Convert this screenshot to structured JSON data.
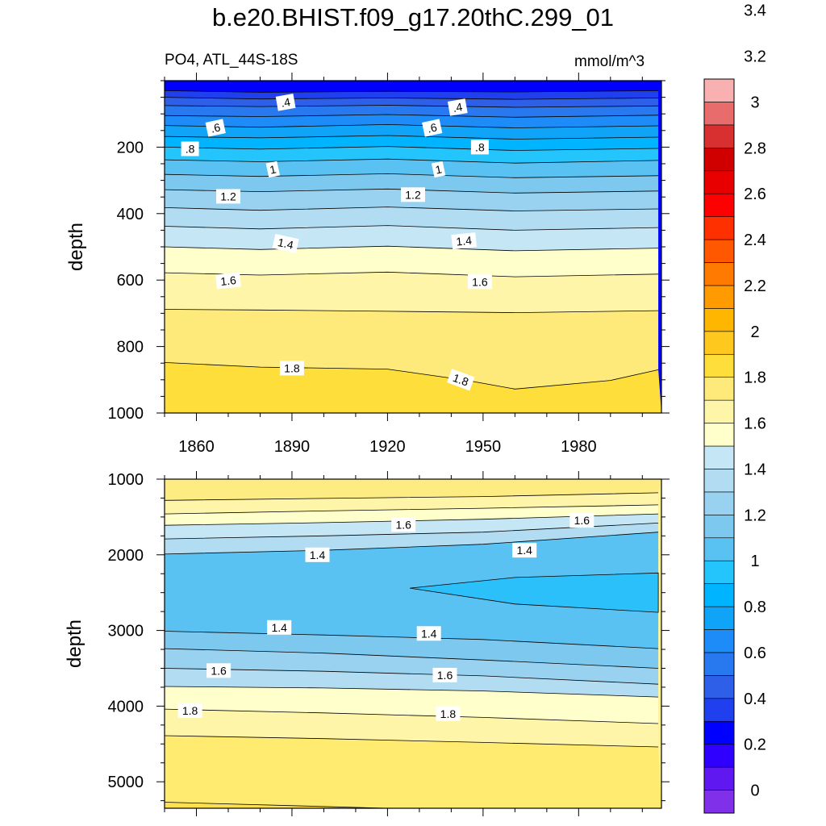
{
  "title": "b.e20.BHIST.f09_g17.20thC.299_01",
  "subtitle_left": "PO4, ATL_44S-18S",
  "subtitle_right": "mmol/m^3",
  "chart_data": [
    {
      "type": "contour",
      "panel": "upper",
      "ylabel": "depth",
      "xlabel": "",
      "xlim": [
        1850,
        2006
      ],
      "ylim": [
        0,
        1000
      ],
      "y_reversed": true,
      "xticks": [
        1860,
        1890,
        1920,
        1950,
        1980
      ],
      "yticks": [
        200,
        400,
        600,
        800,
        1000
      ],
      "contour_levels": [
        {
          "value": 0.3,
          "depth": [
            [
              1850,
              30
            ],
            [
              1880,
              35
            ],
            [
              1920,
              32
            ],
            [
              1960,
              34
            ],
            [
              2005,
              30
            ]
          ]
        },
        {
          "value": 0.4,
          "depth": [
            [
              1850,
              50
            ],
            [
              1880,
              55
            ],
            [
              1920,
              52
            ],
            [
              1960,
              56
            ],
            [
              2005,
              52
            ]
          ]
        },
        {
          "value": 0.5,
          "depth": [
            [
              1850,
              75
            ],
            [
              1880,
              78
            ],
            [
              1920,
              74
            ],
            [
              1960,
              80
            ],
            [
              2005,
              76
            ]
          ]
        },
        {
          "value": 0.6,
          "depth": [
            [
              1850,
              105
            ],
            [
              1880,
              108
            ],
            [
              1920,
              102
            ],
            [
              1960,
              110
            ],
            [
              2005,
              104
            ]
          ]
        },
        {
          "value": 0.7,
          "depth": [
            [
              1850,
              135
            ],
            [
              1880,
              140
            ],
            [
              1920,
              132
            ],
            [
              1960,
              142
            ],
            [
              2005,
              136
            ]
          ]
        },
        {
          "value": 0.8,
          "depth": [
            [
              1850,
              168
            ],
            [
              1880,
              172
            ],
            [
              1920,
              165
            ],
            [
              1960,
              176
            ],
            [
              2005,
              170
            ]
          ]
        },
        {
          "value": 0.9,
          "depth": [
            [
              1850,
              200
            ],
            [
              1880,
              206
            ],
            [
              1920,
              198
            ],
            [
              1960,
              210
            ],
            [
              2005,
              204
            ]
          ]
        },
        {
          "value": 1.0,
          "depth": [
            [
              1850,
              238
            ],
            [
              1880,
              244
            ],
            [
              1920,
              236
            ],
            [
              1960,
              248
            ],
            [
              2005,
              240
            ]
          ]
        },
        {
          "value": 1.1,
          "depth": [
            [
              1850,
              282
            ],
            [
              1880,
              288
            ],
            [
              1920,
              280
            ],
            [
              1960,
              292
            ],
            [
              2005,
              286
            ]
          ]
        },
        {
          "value": 1.2,
          "depth": [
            [
              1850,
              328
            ],
            [
              1880,
              334
            ],
            [
              1920,
              326
            ],
            [
              1960,
              338
            ],
            [
              2005,
              332
            ]
          ]
        },
        {
          "value": 1.3,
          "depth": [
            [
              1850,
              382
            ],
            [
              1880,
              390
            ],
            [
              1920,
              380
            ],
            [
              1960,
              392
            ],
            [
              2005,
              386
            ]
          ]
        },
        {
          "value": 1.4,
          "depth": [
            [
              1850,
              438
            ],
            [
              1880,
              446
            ],
            [
              1920,
              436
            ],
            [
              1960,
              450
            ],
            [
              2005,
              442
            ]
          ]
        },
        {
          "value": 1.5,
          "depth": [
            [
              1850,
              500
            ],
            [
              1880,
              508
            ],
            [
              1920,
              498
            ],
            [
              1960,
              512
            ],
            [
              2005,
              504
            ]
          ]
        },
        {
          "value": 1.6,
          "depth": [
            [
              1850,
              578
            ],
            [
              1880,
              585
            ],
            [
              1920,
              576
            ],
            [
              1960,
              590
            ],
            [
              2005,
              582
            ]
          ]
        },
        {
          "value": 1.7,
          "depth": [
            [
              1850,
              688
            ],
            [
              1880,
              690
            ],
            [
              1920,
              694
            ],
            [
              1960,
              698
            ],
            [
              2005,
              692
            ]
          ]
        },
        {
          "value": 1.8,
          "depth": [
            [
              1850,
              848
            ],
            [
              1880,
              862
            ],
            [
              1920,
              868
            ],
            [
              1945,
              902
            ],
            [
              1960,
              928
            ],
            [
              1990,
              902
            ],
            [
              2005,
              870
            ]
          ]
        }
      ],
      "contour_labels": [
        {
          "text": ".4",
          "x": 1888,
          "y": 65,
          "rot": -10
        },
        {
          "text": ".4",
          "x": 1942,
          "y": 80,
          "rot": -10
        },
        {
          "text": ".6",
          "x": 1866,
          "y": 142,
          "rot": -12
        },
        {
          "text": ".6",
          "x": 1934,
          "y": 142,
          "rot": -12
        },
        {
          "text": ".8",
          "x": 1858,
          "y": 205,
          "rot": 0
        },
        {
          "text": ".8",
          "x": 1949,
          "y": 200,
          "rot": 0
        },
        {
          "text": "1",
          "x": 1884,
          "y": 267,
          "rot": -12
        },
        {
          "text": "1",
          "x": 1936,
          "y": 267,
          "rot": -12
        },
        {
          "text": "1.2",
          "x": 1870,
          "y": 348,
          "rot": 0
        },
        {
          "text": "1.2",
          "x": 1928,
          "y": 343,
          "rot": 0
        },
        {
          "text": "1.4",
          "x": 1888,
          "y": 490,
          "rot": 12
        },
        {
          "text": "1.4",
          "x": 1944,
          "y": 482,
          "rot": -6
        },
        {
          "text": "1.6",
          "x": 1870,
          "y": 602,
          "rot": -6
        },
        {
          "text": "1.6",
          "x": 1949,
          "y": 605,
          "rot": 0
        },
        {
          "text": "1.8",
          "x": 1890,
          "y": 865,
          "rot": 0
        },
        {
          "text": "1.8",
          "x": 1943,
          "y": 900,
          "rot": 20
        }
      ]
    },
    {
      "type": "contour",
      "panel": "lower",
      "ylabel": "depth",
      "xlabel": "",
      "xlim": [
        1850,
        2006
      ],
      "ylim": [
        1000,
        5350
      ],
      "y_reversed": true,
      "xticks": [
        1860,
        1890,
        1920,
        1950,
        1980
      ],
      "yticks": [
        1000,
        2000,
        3000,
        4000,
        5000
      ],
      "contour_levels": [
        {
          "value": 1.8,
          "depth": [
            [
              1850,
              1280
            ],
            [
              1900,
              1255
            ],
            [
              1950,
              1230
            ],
            [
              2005,
              1180
            ]
          ]
        },
        {
          "value": 1.7,
          "depth": [
            [
              1850,
              1460
            ],
            [
              1900,
              1420
            ],
            [
              1950,
              1385
            ],
            [
              2005,
              1340
            ]
          ]
        },
        {
          "value": 1.6,
          "depth": [
            [
              1850,
              1610
            ],
            [
              1900,
              1575
            ],
            [
              1950,
              1530
            ],
            [
              2005,
              1460
            ]
          ]
        },
        {
          "value": 1.5,
          "depth": [
            [
              1850,
              1790
            ],
            [
              1900,
              1750
            ],
            [
              1950,
              1700
            ],
            [
              2005,
              1580
            ]
          ]
        },
        {
          "value": 1.4,
          "depth": [
            [
              1850,
              1990
            ],
            [
              1900,
              1940
            ],
            [
              1950,
              1860
            ],
            [
              2005,
              1700
            ]
          ]
        },
        {
          "value": 1.3,
          "depth": [
            [
              1850,
              3010
            ],
            [
              1900,
              3060
            ],
            [
              1950,
              3120
            ],
            [
              2005,
              3240
            ]
          ]
        },
        {
          "value": 1.45,
          "depth": [
            [
              1850,
              3240
            ],
            [
              1900,
              3300
            ],
            [
              1950,
              3390
            ],
            [
              2005,
              3500
            ]
          ]
        },
        {
          "value": 1.55,
          "depth": [
            [
              1850,
              3500
            ],
            [
              1900,
              3540
            ],
            [
              1950,
              3600
            ],
            [
              2005,
              3710
            ]
          ]
        },
        {
          "value": 1.65,
          "depth": [
            [
              1850,
              3740
            ],
            [
              1900,
              3760
            ],
            [
              1950,
              3800
            ],
            [
              2005,
              3880
            ]
          ]
        },
        {
          "value": 1.75,
          "depth": [
            [
              1850,
              4040
            ],
            [
              1900,
              4090
            ],
            [
              1950,
              4150
            ],
            [
              2005,
              4230
            ]
          ]
        },
        {
          "value": 1.85,
          "depth": [
            [
              1850,
              4390
            ],
            [
              1900,
              4430
            ],
            [
              1950,
              4480
            ],
            [
              2005,
              4540
            ]
          ]
        }
      ],
      "closed_contours": [
        {
          "value": 1.3,
          "points": [
            [
              1927,
              2440
            ],
            [
              1960,
              2300
            ],
            [
              2005,
              2240
            ],
            [
              2005,
              2760
            ],
            [
              1960,
              2650
            ],
            [
              1927,
              2440
            ]
          ]
        }
      ],
      "contour_labels": [
        {
          "text": "1.6",
          "x": 1925,
          "y": 1600,
          "rot": 0
        },
        {
          "text": "1.6",
          "x": 1981,
          "y": 1545,
          "rot": 0
        },
        {
          "text": "1.4",
          "x": 1898,
          "y": 2000,
          "rot": 0
        },
        {
          "text": "1.4",
          "x": 1963,
          "y": 1940,
          "rot": 0
        },
        {
          "text": "1.4",
          "x": 1886,
          "y": 2960,
          "rot": 0
        },
        {
          "text": "1.4",
          "x": 1933,
          "y": 3040,
          "rot": 0
        },
        {
          "text": "1.6",
          "x": 1867,
          "y": 3530,
          "rot": 0
        },
        {
          "text": "1.6",
          "x": 1938,
          "y": 3590,
          "rot": 0
        },
        {
          "text": "1.8",
          "x": 1858,
          "y": 4060,
          "rot": 0
        },
        {
          "text": "1.8",
          "x": 1939,
          "y": 4100,
          "rot": 0
        }
      ]
    }
  ],
  "colorbar": {
    "colors": [
      "#8030e8",
      "#6018f0",
      "#3000ff",
      "#0000ff",
      "#2040f0",
      "#2e5fe8",
      "#2878f0",
      "#1e8cf8",
      "#10a4f8",
      "#00b4ff",
      "#24c4fc",
      "#5ac2f2",
      "#7cc8ee",
      "#98d2f0",
      "#b2dcf2",
      "#c4e6f5",
      "#ffffcc",
      "#fff5a8",
      "#fdea7a",
      "#fede3a",
      "#fec81e",
      "#ffb600",
      "#ff9a00",
      "#ff7a00",
      "#ff5800",
      "#ff3000",
      "#ff0000",
      "#e80000",
      "#d00000",
      "#d83030",
      "#e86c6c",
      "#f8b0b0"
    ],
    "labels": [
      "0",
      "0.2",
      "0.4",
      "0.6",
      "0.8",
      "1",
      "1.2",
      "1.4",
      "1.6",
      "1.8",
      "2",
      "2.2",
      "2.4",
      "2.6",
      "2.8",
      "3",
      "3.2",
      "3.4"
    ]
  }
}
